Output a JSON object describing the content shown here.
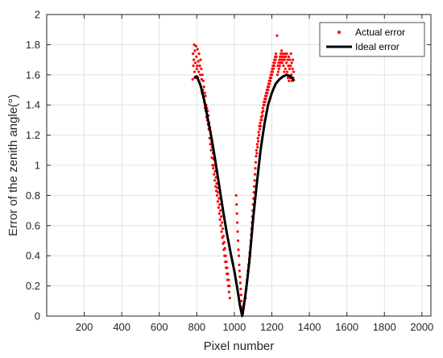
{
  "chart_data": {
    "type": "scatter",
    "title": "",
    "xlabel": "Pixel number",
    "ylabel": "Error of the zenith angle(°)",
    "xlim": [
      0,
      2048
    ],
    "ylim": [
      0,
      2
    ],
    "xticks": [
      200,
      400,
      600,
      800,
      1000,
      1200,
      1400,
      1600,
      1800,
      2000
    ],
    "xtick_labels": [
      "200",
      "400",
      "600",
      "800",
      "1000",
      "1200",
      "1400",
      "1600",
      "1800",
      "2000"
    ],
    "yticks": [
      0,
      0.2,
      0.4,
      0.6,
      0.8,
      1,
      1.2,
      1.4,
      1.6,
      1.8,
      2
    ],
    "ytick_labels": [
      "0",
      "0.2",
      "0.4",
      "0.6",
      "0.8",
      "1",
      "1.2",
      "1.4",
      "1.6",
      "1.8",
      "2"
    ],
    "grid": true,
    "legend_position": "top-right",
    "series": [
      {
        "name": "Actual error",
        "kind": "scatter",
        "color": "#ff0000",
        "points": [
          [
            778,
            1.57
          ],
          [
            780,
            1.74
          ],
          [
            782,
            1.66
          ],
          [
            784,
            1.7
          ],
          [
            786,
            1.8
          ],
          [
            788,
            1.62
          ],
          [
            790,
            1.76
          ],
          [
            792,
            1.68
          ],
          [
            794,
            1.58
          ],
          [
            796,
            1.79
          ],
          [
            798,
            1.72
          ],
          [
            800,
            1.64
          ],
          [
            802,
            1.66
          ],
          [
            804,
            1.77
          ],
          [
            806,
            1.58
          ],
          [
            808,
            1.69
          ],
          [
            810,
            1.62
          ],
          [
            812,
            1.74
          ],
          [
            814,
            1.55
          ],
          [
            816,
            1.66
          ],
          [
            818,
            1.6
          ],
          [
            820,
            1.7
          ],
          [
            822,
            1.52
          ],
          [
            824,
            1.64
          ],
          [
            826,
            1.57
          ],
          [
            828,
            1.48
          ],
          [
            830,
            1.6
          ],
          [
            832,
            1.5
          ],
          [
            834,
            1.56
          ],
          [
            836,
            1.45
          ],
          [
            838,
            1.52
          ],
          [
            840,
            1.42
          ],
          [
            842,
            1.48
          ],
          [
            844,
            1.38
          ],
          [
            846,
            1.46
          ],
          [
            848,
            1.36
          ],
          [
            850,
            1.4
          ],
          [
            852,
            1.32
          ],
          [
            854,
            1.38
          ],
          [
            856,
            1.3
          ],
          [
            858,
            1.36
          ],
          [
            860,
            1.27
          ],
          [
            862,
            1.33
          ],
          [
            864,
            1.24
          ],
          [
            866,
            1.28
          ],
          [
            868,
            1.18
          ],
          [
            870,
            1.25
          ],
          [
            872,
            1.14
          ],
          [
            874,
            1.22
          ],
          [
            876,
            1.1
          ],
          [
            878,
            1.16
          ],
          [
            880,
            1.05
          ],
          [
            882,
            1.12
          ],
          [
            884,
            1.0
          ],
          [
            886,
            1.08
          ],
          [
            888,
            0.98
          ],
          [
            890,
            1.04
          ],
          [
            892,
            0.94
          ],
          [
            894,
            1.0
          ],
          [
            896,
            0.9
          ],
          [
            898,
            0.96
          ],
          [
            900,
            0.86
          ],
          [
            902,
            0.92
          ],
          [
            904,
            0.83
          ],
          [
            906,
            0.88
          ],
          [
            908,
            0.8
          ],
          [
            910,
            0.85
          ],
          [
            912,
            0.76
          ],
          [
            914,
            0.82
          ],
          [
            916,
            0.72
          ],
          [
            918,
            0.78
          ],
          [
            920,
            0.68
          ],
          [
            922,
            0.74
          ],
          [
            924,
            0.64
          ],
          [
            926,
            0.7
          ],
          [
            928,
            0.6
          ],
          [
            930,
            0.66
          ],
          [
            932,
            0.56
          ],
          [
            934,
            0.62
          ],
          [
            936,
            0.52
          ],
          [
            938,
            0.58
          ],
          [
            940,
            0.48
          ],
          [
            942,
            0.53
          ],
          [
            944,
            0.44
          ],
          [
            946,
            0.49
          ],
          [
            948,
            0.4
          ],
          [
            950,
            0.45
          ],
          [
            952,
            0.36
          ],
          [
            954,
            0.4
          ],
          [
            956,
            0.32
          ],
          [
            958,
            0.36
          ],
          [
            960,
            0.28
          ],
          [
            962,
            0.32
          ],
          [
            964,
            0.24
          ],
          [
            966,
            0.28
          ],
          [
            968,
            0.2
          ],
          [
            970,
            0.24
          ],
          [
            972,
            0.16
          ],
          [
            974,
            0.2
          ],
          [
            976,
            0.12
          ],
          [
            1010,
            0.8
          ],
          [
            1012,
            0.74
          ],
          [
            1014,
            0.68
          ],
          [
            1016,
            0.62
          ],
          [
            1018,
            0.56
          ],
          [
            1020,
            0.5
          ],
          [
            1022,
            0.44
          ],
          [
            1024,
            0.4
          ],
          [
            1026,
            0.34
          ],
          [
            1028,
            0.3
          ],
          [
            1030,
            0.26
          ],
          [
            1032,
            0.22
          ],
          [
            1034,
            0.18
          ],
          [
            1036,
            0.14
          ],
          [
            1038,
            0.1
          ],
          [
            1040,
            0.06
          ],
          [
            1042,
            0.04
          ],
          [
            1046,
            0.02
          ],
          [
            1048,
            0.05
          ],
          [
            1050,
            0.08
          ],
          [
            1060,
            0.12
          ],
          [
            1064,
            0.18
          ],
          [
            1068,
            0.24
          ],
          [
            1072,
            0.3
          ],
          [
            1076,
            0.34
          ],
          [
            1080,
            0.38
          ],
          [
            1082,
            0.42
          ],
          [
            1084,
            0.4
          ],
          [
            1086,
            0.46
          ],
          [
            1088,
            0.5
          ],
          [
            1090,
            0.54
          ],
          [
            1092,
            0.58
          ],
          [
            1094,
            0.62
          ],
          [
            1096,
            0.66
          ],
          [
            1098,
            0.7
          ],
          [
            1100,
            0.74
          ],
          [
            1102,
            0.78
          ],
          [
            1104,
            0.82
          ],
          [
            1106,
            0.86
          ],
          [
            1108,
            0.9
          ],
          [
            1110,
            0.94
          ],
          [
            1112,
            0.98
          ],
          [
            1114,
            1.02
          ],
          [
            1116,
            1.06
          ],
          [
            1118,
            1.1
          ],
          [
            1120,
            1.08
          ],
          [
            1122,
            1.14
          ],
          [
            1124,
            1.12
          ],
          [
            1126,
            1.18
          ],
          [
            1128,
            1.16
          ],
          [
            1130,
            1.22
          ],
          [
            1132,
            1.2
          ],
          [
            1134,
            1.26
          ],
          [
            1136,
            1.24
          ],
          [
            1138,
            1.28
          ],
          [
            1140,
            1.26
          ],
          [
            1142,
            1.3
          ],
          [
            1144,
            1.32
          ],
          [
            1146,
            1.3
          ],
          [
            1148,
            1.35
          ],
          [
            1150,
            1.33
          ],
          [
            1152,
            1.38
          ],
          [
            1154,
            1.36
          ],
          [
            1156,
            1.4
          ],
          [
            1158,
            1.42
          ],
          [
            1160,
            1.4
          ],
          [
            1162,
            1.44
          ],
          [
            1164,
            1.42
          ],
          [
            1166,
            1.46
          ],
          [
            1168,
            1.44
          ],
          [
            1170,
            1.48
          ],
          [
            1172,
            1.46
          ],
          [
            1174,
            1.5
          ],
          [
            1176,
            1.48
          ],
          [
            1178,
            1.52
          ],
          [
            1180,
            1.5
          ],
          [
            1182,
            1.54
          ],
          [
            1184,
            1.52
          ],
          [
            1186,
            1.56
          ],
          [
            1188,
            1.54
          ],
          [
            1190,
            1.58
          ],
          [
            1192,
            1.56
          ],
          [
            1194,
            1.6
          ],
          [
            1196,
            1.58
          ],
          [
            1198,
            1.62
          ],
          [
            1200,
            1.6
          ],
          [
            1202,
            1.64
          ],
          [
            1204,
            1.62
          ],
          [
            1206,
            1.66
          ],
          [
            1208,
            1.64
          ],
          [
            1210,
            1.68
          ],
          [
            1212,
            1.66
          ],
          [
            1214,
            1.7
          ],
          [
            1216,
            1.68
          ],
          [
            1218,
            1.72
          ],
          [
            1220,
            1.7
          ],
          [
            1222,
            1.74
          ],
          [
            1224,
            1.72
          ],
          [
            1228,
            1.86
          ],
          [
            1230,
            1.6
          ],
          [
            1232,
            1.66
          ],
          [
            1234,
            1.62
          ],
          [
            1236,
            1.68
          ],
          [
            1238,
            1.64
          ],
          [
            1240,
            1.7
          ],
          [
            1242,
            1.66
          ],
          [
            1244,
            1.72
          ],
          [
            1246,
            1.68
          ],
          [
            1248,
            1.74
          ],
          [
            1250,
            1.7
          ],
          [
            1252,
            1.76
          ],
          [
            1254,
            1.72
          ],
          [
            1256,
            1.68
          ],
          [
            1258,
            1.74
          ],
          [
            1260,
            1.7
          ],
          [
            1262,
            1.66
          ],
          [
            1264,
            1.72
          ],
          [
            1266,
            1.62
          ],
          [
            1268,
            1.7
          ],
          [
            1270,
            1.74
          ],
          [
            1272,
            1.64
          ],
          [
            1274,
            1.72
          ],
          [
            1276,
            1.6
          ],
          [
            1278,
            1.68
          ],
          [
            1280,
            1.74
          ],
          [
            1282,
            1.62
          ],
          [
            1284,
            1.7
          ],
          [
            1286,
            1.58
          ],
          [
            1288,
            1.66
          ],
          [
            1290,
            1.72
          ],
          [
            1292,
            1.56
          ],
          [
            1294,
            1.64
          ],
          [
            1296,
            1.7
          ],
          [
            1298,
            1.58
          ],
          [
            1300,
            1.66
          ],
          [
            1302,
            1.74
          ],
          [
            1304,
            1.6
          ],
          [
            1306,
            1.68
          ],
          [
            1308,
            1.56
          ],
          [
            1310,
            1.64
          ],
          [
            1312,
            1.7
          ],
          [
            1314,
            1.58
          ],
          [
            1316,
            1.62
          ]
        ]
      },
      {
        "name": "Ideal error",
        "kind": "line",
        "color": "#000000",
        "points": [
          [
            785,
            1.58
          ],
          [
            800,
            1.59
          ],
          [
            820,
            1.53
          ],
          [
            840,
            1.43
          ],
          [
            860,
            1.3
          ],
          [
            880,
            1.17
          ],
          [
            900,
            1.02
          ],
          [
            920,
            0.86
          ],
          [
            940,
            0.7
          ],
          [
            960,
            0.55
          ],
          [
            980,
            0.42
          ],
          [
            1000,
            0.3
          ],
          [
            1010,
            0.23
          ],
          [
            1020,
            0.15
          ],
          [
            1030,
            0.07
          ],
          [
            1042,
            0.0
          ],
          [
            1050,
            0.06
          ],
          [
            1060,
            0.15
          ],
          [
            1070,
            0.25
          ],
          [
            1080,
            0.36
          ],
          [
            1090,
            0.5
          ],
          [
            1100,
            0.64
          ],
          [
            1110,
            0.76
          ],
          [
            1120,
            0.88
          ],
          [
            1140,
            1.1
          ],
          [
            1160,
            1.27
          ],
          [
            1180,
            1.4
          ],
          [
            1200,
            1.48
          ],
          [
            1220,
            1.54
          ],
          [
            1240,
            1.57
          ],
          [
            1260,
            1.59
          ],
          [
            1280,
            1.6
          ],
          [
            1300,
            1.59
          ],
          [
            1320,
            1.56
          ]
        ]
      }
    ]
  }
}
